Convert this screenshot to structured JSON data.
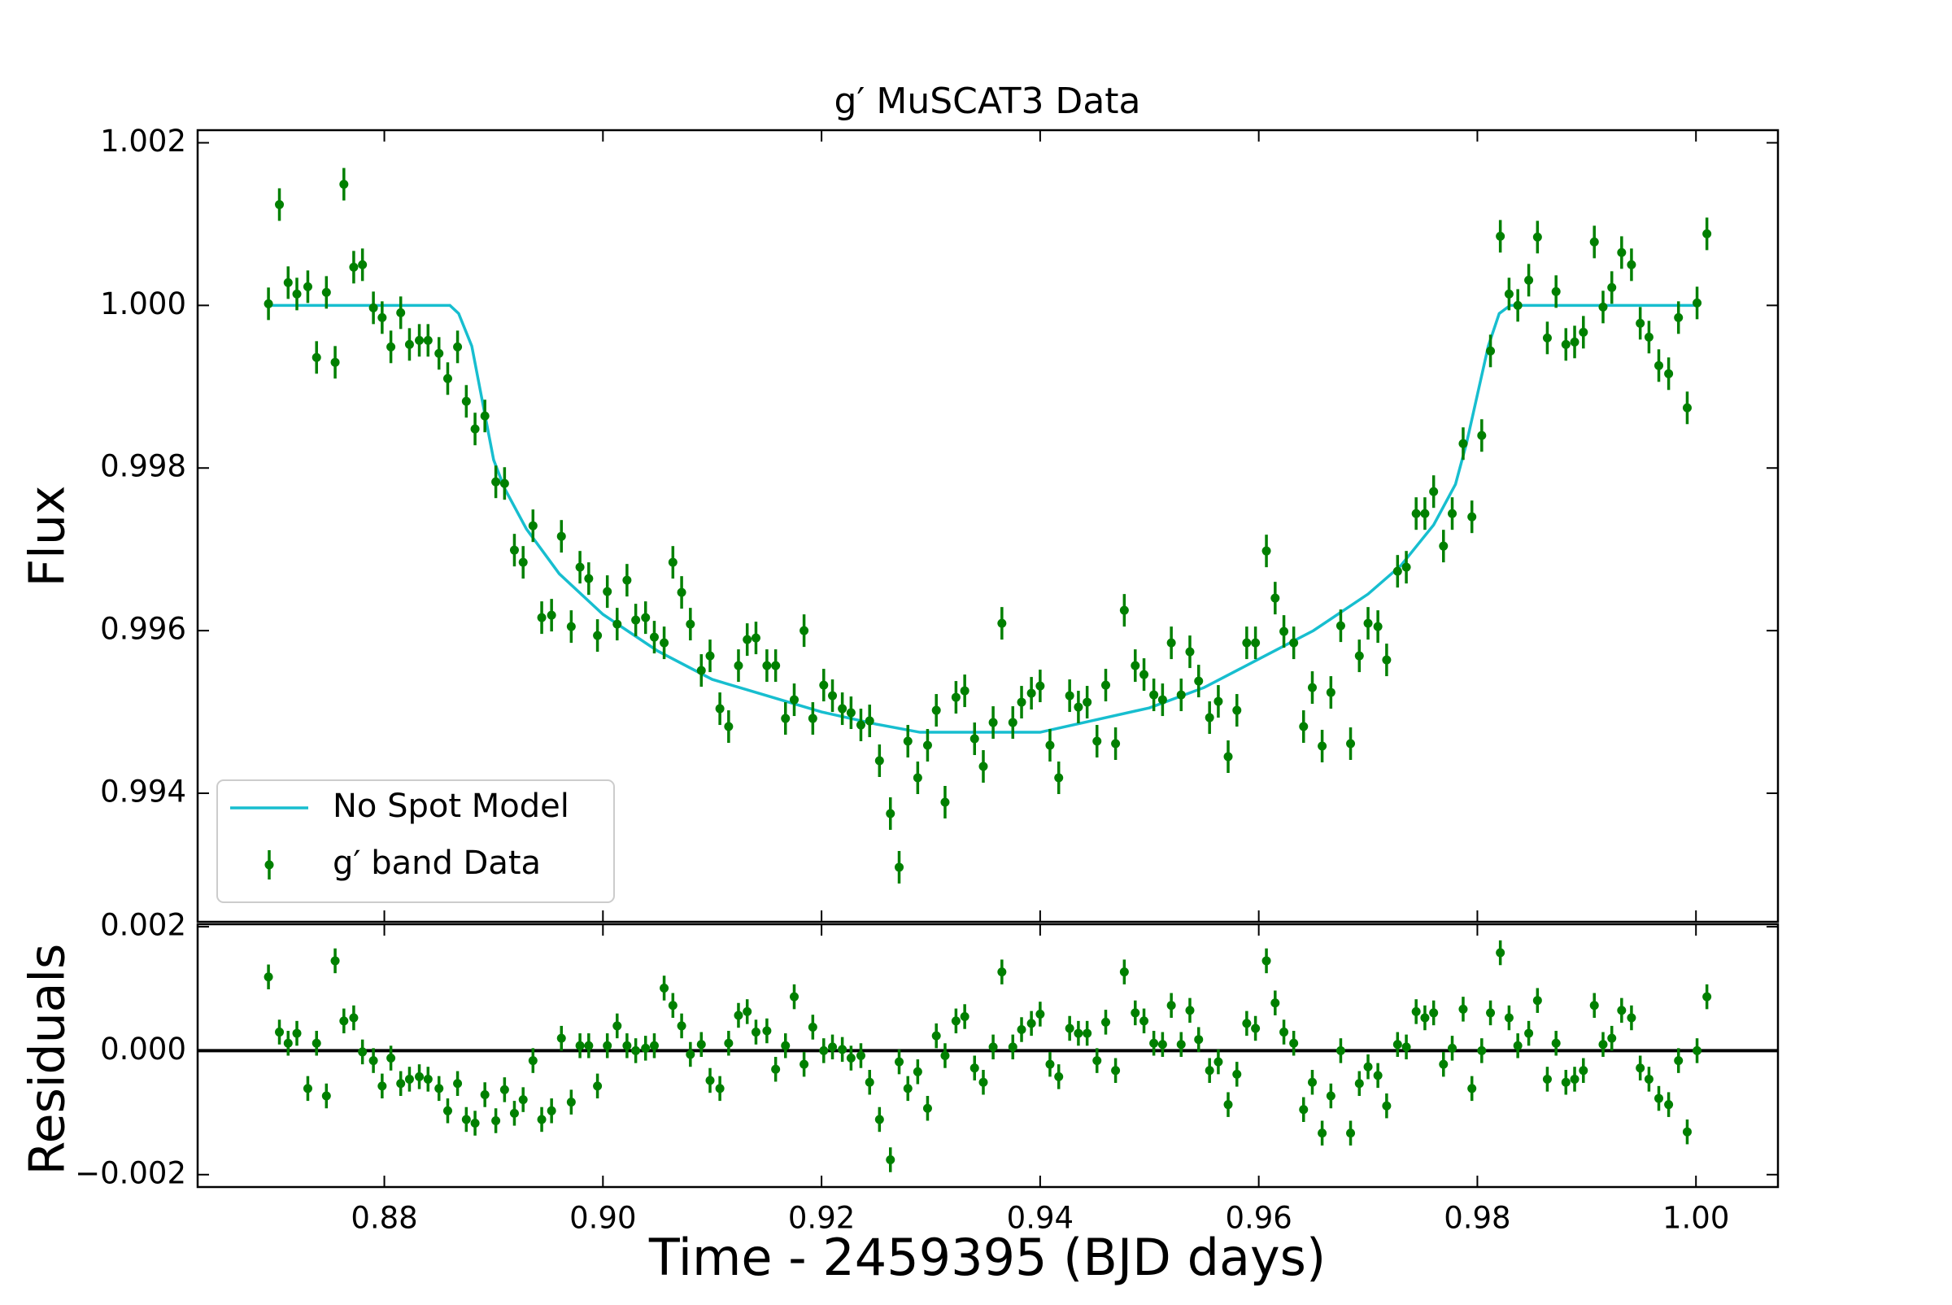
{
  "chart_data": [
    {
      "type": "line",
      "title": "g′ MuSCAT3 Data",
      "ylabel": "Flux",
      "xlim": [
        0.86292,
        1.0075
      ],
      "ylim": [
        0.992419,
        1.002155
      ],
      "yticks": [
        0.994,
        0.996,
        0.998,
        {
          "value": 1,
          "label": "1.000"
        },
        1.002
      ],
      "legend": "lower left",
      "series": [
        {
          "name": "No Spot Model",
          "style": "line",
          "color": "#17becf",
          "x": [
            0.8694,
            0.886,
            0.8868,
            0.888,
            0.889,
            0.89,
            0.891,
            0.893,
            0.896,
            0.9,
            0.905,
            0.91,
            0.915,
            0.92,
            0.925,
            0.929,
            0.94,
            0.945,
            0.95,
            0.955,
            0.96,
            0.965,
            0.97,
            0.973,
            0.976,
            0.978,
            0.979,
            0.98,
            0.981,
            0.982,
            0.983,
            1.0
          ],
          "values": [
            1.0,
            1.0,
            0.9999,
            0.9995,
            0.9988,
            0.9981,
            0.99775,
            0.99725,
            0.9967,
            0.9962,
            0.99575,
            0.9954,
            0.9952,
            0.995,
            0.99485,
            0.99475,
            0.99475,
            0.9949,
            0.99505,
            0.9953,
            0.99565,
            0.996,
            0.99645,
            0.9968,
            0.9973,
            0.9978,
            0.9983,
            0.9989,
            0.9995,
            0.9999,
            1.0,
            1.0
          ]
        },
        {
          "name": "g′ band Data",
          "style": "errorbar",
          "color": "#008000",
          "yerr": 0.0002,
          "x": [
            0.8694,
            0.8704,
            0.8712,
            0.872,
            0.873,
            0.8738,
            0.8747,
            0.8755,
            0.8763,
            0.8772,
            0.878,
            0.879,
            0.8798,
            0.8806,
            0.8815,
            0.8823,
            0.8832,
            0.884,
            0.885,
            0.8858,
            0.8867,
            0.8875,
            0.8883,
            0.8892,
            0.8902,
            0.891,
            0.8919,
            0.8927,
            0.8936,
            0.8944,
            0.8953,
            0.8962,
            0.8971,
            0.8979,
            0.8987,
            0.8995,
            0.9004,
            0.9013,
            0.9022,
            0.903,
            0.9039,
            0.9047,
            0.9056,
            0.9064,
            0.9072,
            0.908,
            0.909,
            0.9098,
            0.9107,
            0.9115,
            0.9124,
            0.9132,
            0.914,
            0.915,
            0.9158,
            0.9167,
            0.9175,
            0.9184,
            0.9192,
            0.9202,
            0.921,
            0.9219,
            0.9227,
            0.9236,
            0.9244,
            0.9253,
            0.9263,
            0.9271,
            0.9279,
            0.9288,
            0.9297,
            0.9305,
            0.9313,
            0.9323,
            0.9331,
            0.934,
            0.9348,
            0.9357,
            0.9365,
            0.9375,
            0.9383,
            0.9392,
            0.94,
            0.9409,
            0.9417,
            0.9427,
            0.9435,
            0.9443,
            0.9452,
            0.946,
            0.9469,
            0.9477,
            0.9487,
            0.9495,
            0.9504,
            0.9512,
            0.952,
            0.9529,
            0.9537,
            0.9545,
            0.9555,
            0.9563,
            0.9572,
            0.958,
            0.9589,
            0.9597,
            0.9607,
            0.9615,
            0.9623,
            0.9632,
            0.9641,
            0.9649,
            0.9658,
            0.9666,
            0.9675,
            0.9684,
            0.9692,
            0.97,
            0.9709,
            0.9717,
            0.9727,
            0.9735,
            0.9744,
            0.9752,
            0.976,
            0.9769,
            0.9777,
            0.9787,
            0.9795,
            0.9804,
            0.9812,
            0.9821,
            0.9829,
            0.9837,
            0.9847,
            0.9855,
            0.9864,
            0.9872,
            0.9881,
            0.9889,
            0.9897,
            0.9907,
            0.9915,
            0.9923,
            0.9932,
            0.9941,
            0.9949,
            0.9957,
            0.9966,
            0.9975,
            0.9984,
            0.9992,
            1.0001,
            1.001
          ],
          "values": [
            1.00002,
            1.00124,
            1.00028,
            1.00014,
            1.00023,
            0.99936,
            1.00016,
            0.9993,
            1.00149,
            1.00047,
            1.0005,
            0.99997,
            0.99985,
            0.99949,
            0.99991,
            0.99952,
            0.99957,
            0.99957,
            0.99941,
            0.9991,
            0.99949,
            0.99882,
            0.99848,
            0.99864,
            0.99783,
            0.99781,
            0.99699,
            0.99684,
            0.99729,
            0.99616,
            0.99619,
            0.99716,
            0.99605,
            0.99678,
            0.99664,
            0.99594,
            0.99648,
            0.99608,
            0.99662,
            0.99613,
            0.99616,
            0.99592,
            0.99585,
            0.99684,
            0.99647,
            0.99608,
            0.99551,
            0.99569,
            0.99504,
            0.99482,
            0.99557,
            0.99589,
            0.99591,
            0.99557,
            0.99557,
            0.99492,
            0.99515,
            0.996,
            0.99492,
            0.99533,
            0.9952,
            0.99504,
            0.99499,
            0.99484,
            0.99489,
            0.9944,
            0.99375,
            0.99309,
            0.99464,
            0.99419,
            0.99459,
            0.99502,
            0.99389,
            0.99518,
            0.99526,
            0.99467,
            0.99433,
            0.99487,
            0.99609,
            0.99487,
            0.99512,
            0.99523,
            0.99532,
            0.99459,
            0.99419,
            0.9952,
            0.99506,
            0.99512,
            0.99464,
            0.99533,
            0.99461,
            0.99625,
            0.99557,
            0.99546,
            0.99521,
            0.99515,
            0.99585,
            0.99521,
            0.99574,
            0.99538,
            0.99493,
            0.99513,
            0.99445,
            0.99502,
            0.99585,
            0.99585,
            0.99698,
            0.9964,
            0.99599,
            0.99585,
            0.99482,
            0.9953,
            0.99458,
            0.99524,
            0.99606,
            0.99461,
            0.99569,
            0.99609,
            0.99605,
            0.99564,
            0.99673,
            0.99678,
            0.99744,
            0.99744,
            0.99771,
            0.99704,
            0.99744,
            0.9983,
            0.9974,
            0.9984,
            0.99944,
            1.00085,
            1.00014,
            1.0,
            1.00031,
            1.00084,
            0.9996,
            1.00017,
            0.99952,
            0.99955,
            0.99967,
            1.00078,
            0.99998,
            1.00022,
            1.00065,
            1.0005,
            0.99978,
            0.99961,
            0.99926,
            0.99916,
            0.99985,
            0.99874,
            1.00003,
            1.00088
          ]
        }
      ]
    },
    {
      "type": "scatter",
      "xlabel": "Time - 2459395 (BJD days)",
      "ylabel": "Residuals",
      "xlim": [
        0.86292,
        1.0075
      ],
      "ylim": [
        -0.0022,
        0.00204
      ],
      "xticks": [
        0.88,
        {
          "value": 0.9,
          "label": "0.90"
        },
        0.92,
        0.94,
        0.96,
        0.98,
        {
          "value": 1,
          "label": "1.00"
        }
      ],
      "yticks": [
        {
          "value": -0.002,
          "label": "−0.002"
        },
        {
          "value": 0,
          "label": "0.000"
        },
        0.002
      ],
      "hline": 0,
      "series": [
        {
          "style": "errorbar",
          "color": "#008000",
          "yerr": 0.0002,
          "x": [
            0.8694,
            0.8704,
            0.8712,
            0.872,
            0.873,
            0.8738,
            0.8747,
            0.8755,
            0.8763,
            0.8772,
            0.878,
            0.879,
            0.8798,
            0.8806,
            0.8815,
            0.8823,
            0.8832,
            0.884,
            0.885,
            0.8858,
            0.8867,
            0.8875,
            0.8883,
            0.8892,
            0.8902,
            0.891,
            0.8919,
            0.8927,
            0.8936,
            0.8944,
            0.8953,
            0.8962,
            0.8971,
            0.8979,
            0.8987,
            0.8995,
            0.9004,
            0.9013,
            0.9022,
            0.903,
            0.9039,
            0.9047,
            0.9056,
            0.9064,
            0.9072,
            0.908,
            0.909,
            0.9098,
            0.9107,
            0.9115,
            0.9124,
            0.9132,
            0.914,
            0.915,
            0.9158,
            0.9167,
            0.9175,
            0.9184,
            0.9192,
            0.9202,
            0.921,
            0.9219,
            0.9227,
            0.9236,
            0.9244,
            0.9253,
            0.9263,
            0.9271,
            0.9279,
            0.9288,
            0.9297,
            0.9305,
            0.9313,
            0.9323,
            0.9331,
            0.934,
            0.9348,
            0.9357,
            0.9365,
            0.9375,
            0.9383,
            0.9392,
            0.94,
            0.9409,
            0.9417,
            0.9427,
            0.9435,
            0.9443,
            0.9452,
            0.946,
            0.9469,
            0.9477,
            0.9487,
            0.9495,
            0.9504,
            0.9512,
            0.952,
            0.9529,
            0.9537,
            0.9545,
            0.9555,
            0.9563,
            0.9572,
            0.958,
            0.9589,
            0.9597,
            0.9607,
            0.9615,
            0.9623,
            0.9632,
            0.9641,
            0.9649,
            0.9658,
            0.9666,
            0.9675,
            0.9684,
            0.9692,
            0.97,
            0.9709,
            0.9717,
            0.9727,
            0.9735,
            0.9744,
            0.9752,
            0.976,
            0.9769,
            0.9777,
            0.9787,
            0.9795,
            0.9804,
            0.9812,
            0.9821,
            0.9829,
            0.9837,
            0.9847,
            0.9855,
            0.9864,
            0.9872,
            0.9881,
            0.9889,
            0.9897,
            0.9907,
            0.9915,
            0.9923,
            0.9932,
            0.9941,
            0.9949,
            0.9957,
            0.9966,
            0.9975,
            0.9984,
            0.9992,
            1.0001,
            1.001
          ],
          "values": [
            0.00119,
            0.0003,
            0.00012,
            0.00028,
            -0.00061,
            0.00012,
            -0.00073,
            0.00145,
            0.00048,
            0.00053,
            -2e-05,
            -0.00016,
            -0.00057,
            -0.00012,
            -0.00053,
            -0.00046,
            -0.00042,
            -0.00046,
            -0.00061,
            -0.00097,
            -0.00053,
            -0.00111,
            -0.00117,
            -0.00071,
            -0.00113,
            -0.00063,
            -0.00101,
            -0.00079,
            -0.00016,
            -0.00111,
            -0.00097,
            0.0002,
            -0.00083,
            8e-05,
            8e-05,
            -0.00057,
            8e-05,
            0.0004,
            8e-05,
            0,
            4e-05,
            8e-05,
            0.00101,
            0.00073,
            0.0004,
            -6e-05,
            0.0001,
            -0.00048,
            -0.00061,
            0.00012,
            0.00057,
            0.00063,
            0.0003,
            0.00032,
            -0.0003,
            8e-05,
            0.00087,
            -0.00022,
            0.00038,
            0,
            6e-05,
            2e-05,
            -0.00012,
            -8e-05,
            -0.00051,
            -0.00111,
            -0.00176,
            -0.00018,
            -0.00061,
            -0.00034,
            -0.00093,
            0.00024,
            -8e-05,
            0.00048,
            0.00055,
            -0.00028,
            -0.00051,
            6e-05,
            0.00127,
            6e-05,
            0.00034,
            0.00044,
            0.00059,
            -0.00022,
            -0.00042,
            0.00036,
            0.00028,
            0.00028,
            -0.00016,
            0.00046,
            -0.00032,
            0.00127,
            0.00061,
            0.00048,
            0.00012,
            0.0001,
            0.00073,
            0.0001,
            0.00065,
            0.00018,
            -0.00032,
            -0.00018,
            -0.00087,
            -0.00038,
            0.00044,
            0.00036,
            0.00145,
            0.00077,
            0.0003,
            0.00012,
            -0.00095,
            -0.00051,
            -0.00133,
            -0.00073,
            0,
            -0.00133,
            -0.00053,
            -0.00026,
            -0.0004,
            -0.00089,
            0.0001,
            6e-05,
            0.00063,
            0.00053,
            0.00061,
            -0.00022,
            4e-05,
            0.00067,
            -0.00061,
            0,
            0.00061,
            0.00158,
            0.00053,
            8e-05,
            0.00028,
            0.00081,
            -0.00046,
            0.00012,
            -0.00051,
            -0.00046,
            -0.00032,
            0.00073,
            0.0001,
            0.0002,
            0.00065,
            0.00053,
            -0.00028,
            -0.00046,
            -0.00077,
            -0.00087,
            -0.00016,
            -0.00131,
            0,
            0.00087
          ]
        }
      ]
    }
  ]
}
